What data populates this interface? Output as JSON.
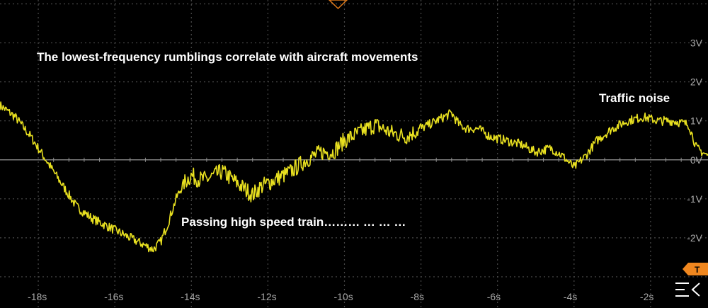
{
  "chart_data": {
    "type": "line",
    "title": "",
    "xlabel": "",
    "ylabel": "",
    "xlim": [
      -19,
      -0.5
    ],
    "ylim": [
      -3.8,
      4.1
    ],
    "x_ticks": [
      "-18s",
      "-16s",
      "-14s",
      "-12s",
      "-10s",
      "-8s",
      "-6s",
      "-4s",
      "-2s"
    ],
    "x_tick_values": [
      -18,
      -16,
      -14,
      -12,
      -10,
      -8,
      -6,
      -4,
      -2
    ],
    "y_ticks": [
      "3V",
      "2V",
      "1V",
      "0V",
      "-1V",
      "-2V"
    ],
    "y_tick_values": [
      3,
      2,
      1,
      0,
      -1,
      -2
    ],
    "grid": true,
    "trace_color": "#e8e020",
    "grid_color": "#4a4a4a",
    "series": [
      {
        "name": "",
        "x": [
          -19.0,
          -18.6,
          -18.2,
          -17.8,
          -17.4,
          -17.0,
          -16.6,
          -16.2,
          -15.8,
          -15.4,
          -15.0,
          -14.8,
          -14.6,
          -14.4,
          -14.2,
          -14.0,
          -13.8,
          -13.6,
          -13.2,
          -12.8,
          -12.4,
          -12.2,
          -11.8,
          -11.4,
          -11.0,
          -10.6,
          -10.3,
          -10.0,
          -9.6,
          -9.2,
          -8.8,
          -8.4,
          -8.0,
          -7.6,
          -7.2,
          -7.0,
          -6.8,
          -6.5,
          -6.2,
          -5.8,
          -5.4,
          -5.0,
          -4.6,
          -4.3,
          -4.0,
          -3.7,
          -3.4,
          -3.0,
          -2.6,
          -2.2,
          -1.8,
          -1.4,
          -1.0,
          -0.8,
          -0.5
        ],
        "y": [
          1.4,
          1.1,
          0.6,
          0.0,
          -0.6,
          -1.2,
          -1.5,
          -1.7,
          -1.9,
          -2.1,
          -2.3,
          -2.1,
          -1.6,
          -1.0,
          -0.6,
          -0.4,
          -0.5,
          -0.5,
          -0.3,
          -0.6,
          -0.9,
          -0.7,
          -0.5,
          -0.3,
          0.0,
          0.2,
          0.2,
          0.5,
          0.7,
          0.9,
          0.7,
          0.6,
          0.8,
          1.0,
          1.2,
          0.9,
          0.8,
          0.8,
          0.6,
          0.5,
          0.4,
          0.2,
          0.3,
          0.1,
          -0.2,
          0.1,
          0.5,
          0.8,
          1.0,
          1.1,
          1.0,
          1.0,
          0.9,
          0.3,
          0.1
        ]
      }
    ],
    "annotations": [
      "The lowest-frequency rumblings correlate with aircraft movements",
      "Traffic noise",
      "Passing high speed train……… … … …"
    ],
    "trigger_marker": "T",
    "menu_icon": "menu-collapse-icon"
  }
}
